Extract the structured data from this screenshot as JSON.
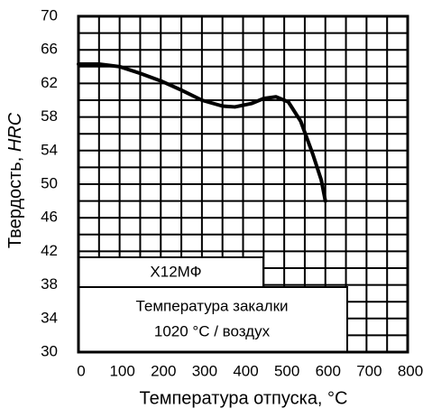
{
  "chart_data": {
    "type": "line",
    "xlabel": "Температура отпуска, °С",
    "ylabel": {
      "text": "Твердость, ",
      "unit": "HRC"
    },
    "annotations": {
      "steel": "Х12МФ",
      "line1": "Температура закалки",
      "line2": "1020 °С / воздух"
    },
    "x": [
      0,
      50,
      100,
      150,
      200,
      250,
      300,
      350,
      380,
      420,
      450,
      480,
      510,
      540,
      570,
      590,
      600
    ],
    "series": [
      {
        "color": "#000000",
        "values": [
          64.3,
          64.3,
          64.0,
          63.2,
          62.3,
          61.2,
          60.0,
          59.3,
          59.2,
          59.6,
          60.2,
          60.4,
          59.8,
          57.5,
          53.5,
          50.5,
          48.0
        ]
      }
    ],
    "xlim": [
      0,
      800
    ],
    "ylim": [
      30,
      70
    ],
    "xticks": [
      0,
      100,
      200,
      300,
      400,
      500,
      600,
      700,
      800
    ],
    "yticks": [
      30,
      34,
      38,
      42,
      46,
      50,
      54,
      58,
      62,
      66,
      70
    ],
    "x_minor_ticks": [
      50,
      150,
      250,
      350,
      450,
      550,
      650,
      750
    ],
    "y_minor_ticks": [
      32,
      36,
      40,
      44,
      48,
      52,
      56,
      60,
      64,
      68
    ],
    "grid": true
  }
}
